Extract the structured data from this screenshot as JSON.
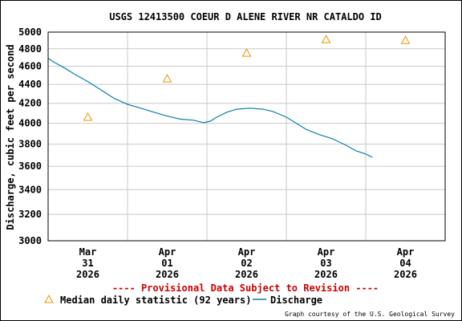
{
  "chart_data": {
    "type": "line",
    "title": "USGS 12413500 COEUR D ALENE RIVER NR CATALDO ID",
    "ylabel": "Discharge, cubic feet per second",
    "xlabel": "",
    "y_scale": "log",
    "ylim": [
      3000,
      5000
    ],
    "y_ticks": [
      {
        "value": 3000,
        "label": "3000"
      },
      {
        "value": 3200,
        "label": "3200"
      },
      {
        "value": 3400,
        "label": "3400"
      },
      {
        "value": 3600,
        "label": "3600"
      },
      {
        "value": 3800,
        "label": "3800"
      },
      {
        "value": 4000,
        "label": "4000"
      },
      {
        "value": 4200,
        "label": "4200"
      },
      {
        "value": 4400,
        "label": "4400"
      },
      {
        "value": 4600,
        "label": "4600"
      },
      {
        "value": 4800,
        "label": "4800"
      },
      {
        "value": 5000,
        "label": "5000"
      }
    ],
    "x_range": [
      "2026-03-31T00:00",
      "2026-04-05T00:00"
    ],
    "x_ticks": [
      {
        "date": "2026-03-31T12:00",
        "month": "Mar",
        "day": "31",
        "year": "2026"
      },
      {
        "date": "2026-04-01T12:00",
        "month": "Apr",
        "day": "01",
        "year": "2026"
      },
      {
        "date": "2026-04-02T12:00",
        "month": "Apr",
        "day": "02",
        "year": "2026"
      },
      {
        "date": "2026-04-03T12:00",
        "month": "Apr",
        "day": "03",
        "year": "2026"
      },
      {
        "date": "2026-04-04T12:00",
        "month": "Apr",
        "day": "04",
        "year": "2026"
      }
    ],
    "x_gridlines": [
      "2026-04-01T00:00",
      "2026-04-02T00:00",
      "2026-04-03T00:00",
      "2026-04-04T00:00"
    ],
    "grid": true,
    "legend_position": "bottom",
    "series": [
      {
        "name": "Median daily statistic (92 years)",
        "kind": "marker",
        "color": "#E69500",
        "points": [
          {
            "x": "2026-03-31T12:00",
            "y": 4060
          },
          {
            "x": "2026-04-01T12:00",
            "y": 4460
          },
          {
            "x": "2026-04-02T12:00",
            "y": 4750
          },
          {
            "x": "2026-04-03T12:00",
            "y": 4910
          },
          {
            "x": "2026-04-04T12:00",
            "y": 4900
          }
        ]
      },
      {
        "name": "Discharge",
        "kind": "line",
        "color": "#0A7FA8",
        "points": [
          {
            "x": "2026-03-31T00:00",
            "y": 4690
          },
          {
            "x": "2026-03-31T02:00",
            "y": 4640
          },
          {
            "x": "2026-03-31T05:00",
            "y": 4580
          },
          {
            "x": "2026-03-31T08:00",
            "y": 4510
          },
          {
            "x": "2026-03-31T12:00",
            "y": 4430
          },
          {
            "x": "2026-03-31T16:00",
            "y": 4340
          },
          {
            "x": "2026-03-31T20:00",
            "y": 4250
          },
          {
            "x": "2026-04-01T00:00",
            "y": 4190
          },
          {
            "x": "2026-04-01T04:00",
            "y": 4150
          },
          {
            "x": "2026-04-01T08:00",
            "y": 4110
          },
          {
            "x": "2026-04-01T12:00",
            "y": 4070
          },
          {
            "x": "2026-04-01T16:00",
            "y": 4040
          },
          {
            "x": "2026-04-01T20:00",
            "y": 4030
          },
          {
            "x": "2026-04-01T23:00",
            "y": 4005
          },
          {
            "x": "2026-04-02T01:00",
            "y": 4020
          },
          {
            "x": "2026-04-02T03:00",
            "y": 4060
          },
          {
            "x": "2026-04-02T06:00",
            "y": 4110
          },
          {
            "x": "2026-04-02T09:00",
            "y": 4140
          },
          {
            "x": "2026-04-02T13:00",
            "y": 4150
          },
          {
            "x": "2026-04-02T17:00",
            "y": 4140
          },
          {
            "x": "2026-04-02T20:00",
            "y": 4115
          },
          {
            "x": "2026-04-03T00:00",
            "y": 4060
          },
          {
            "x": "2026-04-03T03:00",
            "y": 4000
          },
          {
            "x": "2026-04-03T06:00",
            "y": 3940
          },
          {
            "x": "2026-04-03T10:00",
            "y": 3890
          },
          {
            "x": "2026-04-03T14:00",
            "y": 3850
          },
          {
            "x": "2026-04-03T18:00",
            "y": 3790
          },
          {
            "x": "2026-04-03T21:00",
            "y": 3740
          },
          {
            "x": "2026-04-04T00:00",
            "y": 3710
          },
          {
            "x": "2026-04-04T02:00",
            "y": 3680
          }
        ]
      }
    ]
  },
  "notice": "---- Provisional Data Subject to Revision ----",
  "credit": "Graph courtesy of the U.S. Geological Survey",
  "colors": {
    "notice": "#CC0000",
    "grid": "#C8C8C8",
    "axis": "#000000"
  }
}
